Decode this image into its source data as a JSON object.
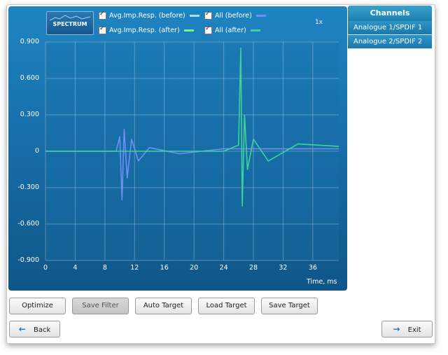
{
  "toolbar": {
    "spectrum_label": "SPECTRUM",
    "legend": [
      {
        "label": "Avg.Imp.Resp. (before)",
        "color": "#9fe3ff"
      },
      {
        "label": "All (before)",
        "color": "#6f8ff2"
      },
      {
        "label": "Avg.Imp.Resp. (after)",
        "color": "#7ef08a"
      },
      {
        "label": "All (after)",
        "color": "#3fd39a"
      }
    ],
    "zoom": "1x"
  },
  "chart_data": {
    "type": "line",
    "xlabel": "Time, ms",
    "ylabel": "",
    "xlim": [
      0,
      39.5
    ],
    "ylim": [
      -0.9,
      0.9
    ],
    "x_ticks": [
      "0",
      "4",
      "8",
      "12",
      "16",
      "20",
      "24",
      "28",
      "32",
      "36"
    ],
    "y_ticks": [
      "0.900",
      "0.600",
      "0.300",
      "0",
      "-0.300",
      "-0.600",
      "-0.900"
    ],
    "grid": true,
    "series": [
      {
        "name": "All (before)",
        "color": "#6f8ff2",
        "x": [
          0,
          9.5,
          10.0,
          10.3,
          10.6,
          11.0,
          11.6,
          12.5,
          14,
          18,
          24,
          26,
          39.5
        ],
        "y": [
          0,
          0,
          0.12,
          -0.4,
          0.18,
          -0.22,
          0.1,
          -0.08,
          0.03,
          -0.02,
          0.02,
          0.02,
          0.02
        ]
      },
      {
        "name": "All (after)",
        "color": "#3fd39a",
        "x": [
          0,
          24,
          26.0,
          26.3,
          26.5,
          26.8,
          27.2,
          28,
          30,
          34,
          39.5
        ],
        "y": [
          0,
          0,
          0.05,
          0.85,
          -0.45,
          0.3,
          -0.15,
          0.1,
          -0.08,
          0.06,
          0.04
        ]
      }
    ]
  },
  "channels": {
    "title": "Channels",
    "items": [
      "Analogue 1/SPDIF 1",
      "Analogue 2/SPDIF 2"
    ]
  },
  "buttons": {
    "optimize": "Optimize",
    "save_filter": "Save Filter",
    "auto_target": "Auto Target",
    "load_target": "Load Target",
    "save_target": "Save Target",
    "back": "Back",
    "exit": "Exit"
  }
}
